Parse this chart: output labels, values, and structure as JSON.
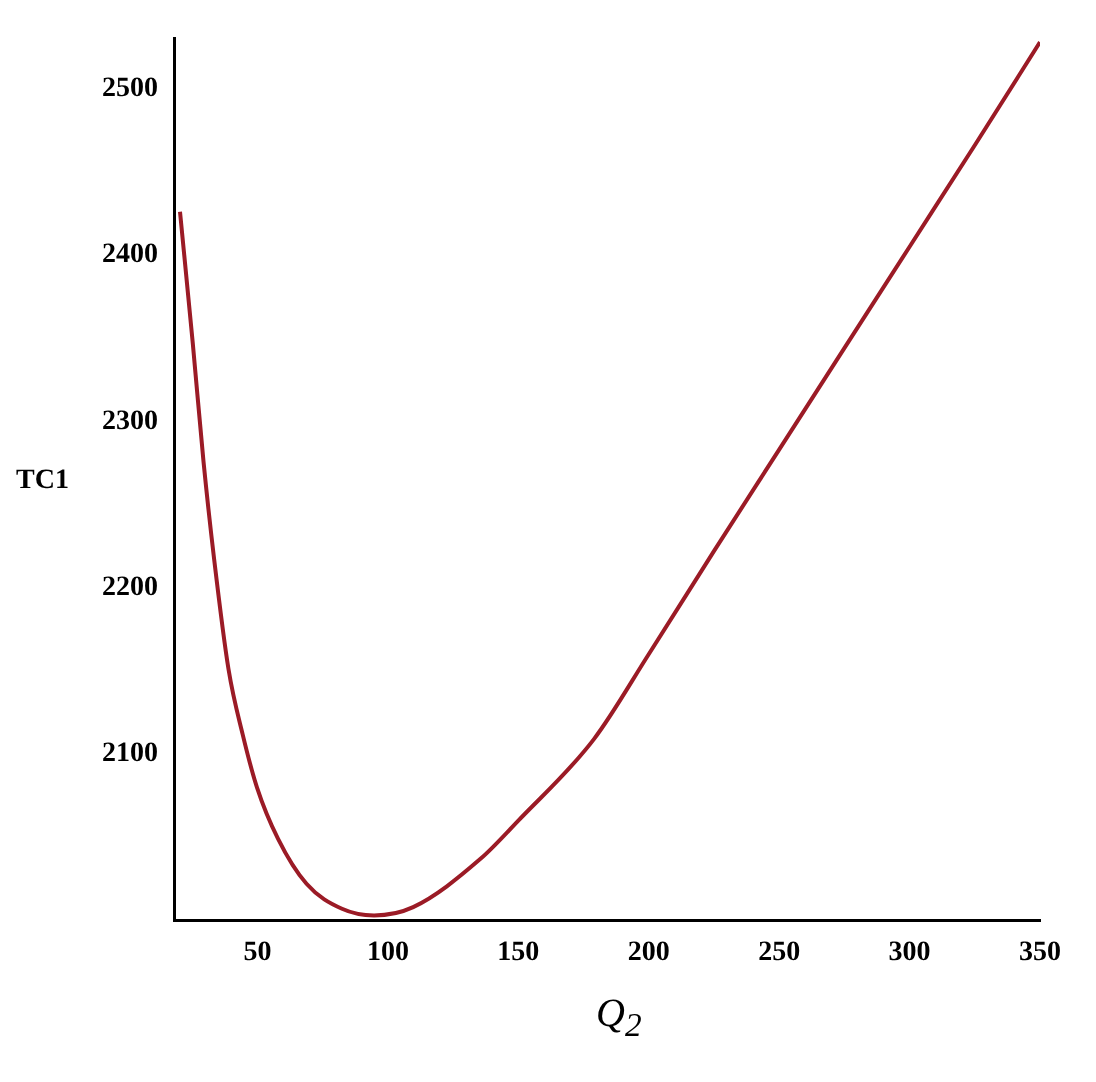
{
  "chart_data": {
    "type": "line",
    "xlabel": "Q$_{2}$",
    "ylabel": "TC1",
    "x": [
      20.3,
      25.2,
      29.3,
      33.4,
      38.9,
      44.3,
      49.8,
      57.9,
      68.8,
      82.4,
      94.7,
      109.7,
      135.5,
      150,
      179,
      200,
      225,
      250,
      275,
      300,
      325,
      350
    ],
    "series": [
      {
        "color": "#9b1b26",
        "values": [
          2426,
          2347,
          2276,
          2217,
          2151,
          2112,
          2080,
          2049,
          2022,
          2007,
          2003,
          2008,
          2037,
          2060,
          2109,
          2160,
          2222,
          2283,
          2344,
          2405,
          2466,
          2528
        ]
      }
    ],
    "xlim": [
      18,
      350
    ],
    "ylim": [
      2000,
      2530
    ],
    "xticks": [
      50,
      100,
      150,
      200,
      250,
      300,
      350
    ],
    "yticks": [
      2100,
      2200,
      2300,
      2400,
      2500
    ],
    "grid": false,
    "legend": false,
    "marker": "none",
    "line_style": "solid"
  }
}
